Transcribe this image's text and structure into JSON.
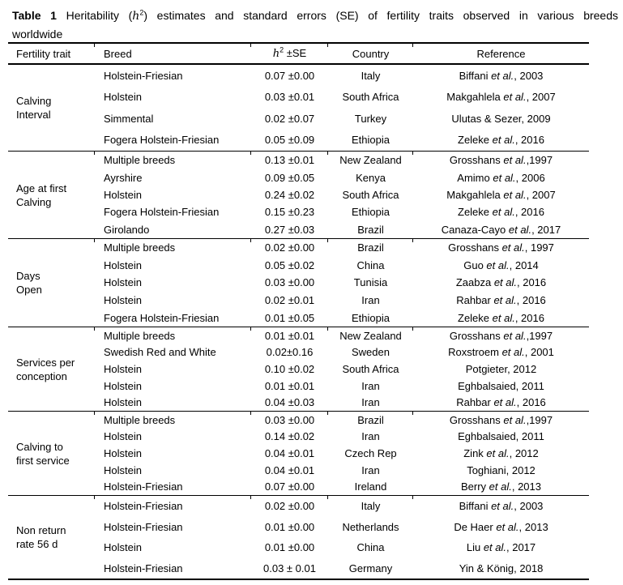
{
  "title": {
    "label": "Table 1",
    "pre": "Heritability (",
    "h": "h",
    "sup": "2",
    "post": ") estimates and standard errors (SE) of fertility traits observed in various breeds",
    "line2": "worldwide"
  },
  "table": {
    "columns": {
      "trait": "Fertility trait",
      "breed": "Breed",
      "h": "h",
      "sup": "2",
      "se": " ±SE",
      "country": "Country",
      "reference": "Reference"
    },
    "sections": [
      {
        "trait": "Calving\nInterval",
        "rows": [
          {
            "breed": "Holstein-Friesian",
            "value": "0.07 ±0.00",
            "country": "Italy",
            "reference": "Biffani et al., 2003"
          },
          {
            "breed": "Holstein",
            "value": "0.03 ±0.01",
            "country": "South Africa",
            "reference": "Makgahlela et al., 2007"
          },
          {
            "breed": "Simmental",
            "value": "0.02 ±0.07",
            "country": "Turkey",
            "reference": "Ulutas & Sezer, 2009"
          },
          {
            "breed": "Fogera Holstein-Friesian",
            "value": "0.05 ±0.09",
            "country": "Ethiopia",
            "reference": "Zeleke et al., 2016"
          }
        ]
      },
      {
        "trait": "Age at first\nCalving",
        "rows": [
          {
            "breed": "Multiple breeds",
            "value": "0.13 ±0.01",
            "country": "New Zealand",
            "reference": "Grosshans et al.,1997"
          },
          {
            "breed": "Ayrshire",
            "value": "0.09 ±0.05",
            "country": "Kenya",
            "reference": "Amimo et al., 2006"
          },
          {
            "breed": "Holstein",
            "value": "0.24 ±0.02",
            "country": "South Africa",
            "reference": "Makgahlela et al., 2007"
          },
          {
            "breed": "Fogera Holstein-Friesian",
            "value": "0.15 ±0.23",
            "country": "Ethiopia",
            "reference": "Zeleke et al., 2016"
          },
          {
            "breed": "Girolando",
            "value": "0.27 ±0.03",
            "country": "Brazil",
            "reference": "Canaza-Cayo et al., 2017"
          }
        ]
      },
      {
        "trait": "Days\nOpen",
        "rows": [
          {
            "breed": "Multiple breeds",
            "value": "0.02 ±0.00",
            "country": "Brazil",
            "reference": "Grosshans et al., 1997"
          },
          {
            "breed": "Holstein",
            "value": "0.05 ±0.02",
            "country": "China",
            "reference": "Guo et al., 2014"
          },
          {
            "breed": "Holstein",
            "value": "0.03 ±0.00",
            "country": "Tunisia",
            "reference": "Zaabza et al., 2016"
          },
          {
            "breed": "Holstein",
            "value": "0.02 ±0.01",
            "country": "Iran",
            "reference": "Rahbar et al., 2016"
          },
          {
            "breed": "Fogera Holstein-Friesian",
            "value": "0.01 ±0.05",
            "country": "Ethiopia",
            "reference": "Zeleke et al., 2016"
          }
        ]
      },
      {
        "trait": "Services per\nconception",
        "rows": [
          {
            "breed": "Multiple breeds",
            "value": "0.01 ±0.01",
            "country": "New Zealand",
            "reference": "Grosshans et al.,1997"
          },
          {
            "breed": "Swedish Red and White",
            "value": "0.02±0.16",
            "country": "Sweden",
            "reference": "Roxstroem et al., 2001"
          },
          {
            "breed": "Holstein",
            "value": "0.10 ±0.02",
            "country": "South Africa",
            "reference": "Potgieter, 2012"
          },
          {
            "breed": "Holstein",
            "value": "0.01 ±0.01",
            "country": "Iran",
            "reference": "Eghbalsaied, 2011"
          },
          {
            "breed": "Holstein",
            "value": "0.04 ±0.03",
            "country": "Iran",
            "reference": "Rahbar et al., 2016"
          }
        ]
      },
      {
        "trait": "Calving to\nfirst service",
        "rows": [
          {
            "breed": "Multiple breeds",
            "value": "0.03 ±0.00",
            "country": "Brazil",
            "reference": "Grosshans et al.,1997"
          },
          {
            "breed": "Holstein",
            "value": "0.14 ±0.02",
            "country": "Iran",
            "reference": "Eghbalsaied, 2011"
          },
          {
            "breed": "Holstein",
            "value": "0.04 ±0.01",
            "country": "Czech Rep",
            "reference": "Zink et al., 2012"
          },
          {
            "breed": "Holstein",
            "value": "0.04 ±0.01",
            "country": "Iran",
            "reference": "Toghiani, 2012"
          },
          {
            "breed": "Holstein-Friesian",
            "value": "0.07 ±0.00",
            "country": "Ireland",
            "reference": "Berry et al., 2013"
          }
        ]
      },
      {
        "trait": "Non return\nrate 56 d",
        "rows": [
          {
            "breed": "Holstein-Friesian",
            "value": "0.02 ±0.00",
            "country": "Italy",
            "reference": "Biffani et al., 2003"
          },
          {
            "breed": "Holstein-Friesian",
            "value": "0.01 ±0.00",
            "country": "Netherlands",
            "reference": "De Haer et al., 2013"
          },
          {
            "breed": "Holstein",
            "value": "0.01 ±0.00",
            "country": "China",
            "reference": "Liu et al., 2017"
          },
          {
            "breed": "Holstein-Friesian",
            "value": "0.03 ± 0.01",
            "country": "Germany",
            "reference": "Yin & König, 2018"
          }
        ]
      }
    ]
  },
  "colors": {
    "text": "#000000",
    "rule": "#000000",
    "background": "#ffffff"
  }
}
